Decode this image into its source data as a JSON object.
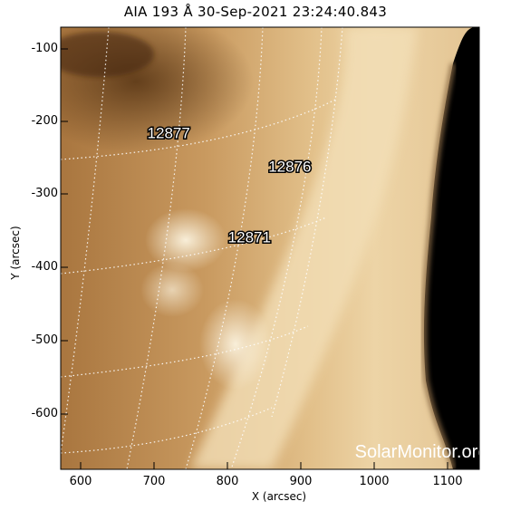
{
  "title": "AIA 193 Å 30-Sep-2021 23:24:40.843",
  "xlabel": "X (arcsec)",
  "ylabel": "Y (arcsec)",
  "watermark": "SolarMonitor.org",
  "x_ticks": [
    "600",
    "700",
    "800",
    "900",
    "1000",
    "1100"
  ],
  "y_ticks": [
    "-100",
    "-200",
    "-300",
    "-400",
    "-500",
    "-600"
  ],
  "regions": [
    {
      "id": "12877",
      "x": 720,
      "y": -222
    },
    {
      "id": "12876",
      "x": 885,
      "y": -268
    },
    {
      "id": "12871",
      "x": 830,
      "y": -365
    }
  ],
  "colors": {
    "disk_bright": "#f6e8c8",
    "disk_mid": "#d7ac72",
    "disk_dark": "#7a4e22",
    "space": "#000000"
  }
}
